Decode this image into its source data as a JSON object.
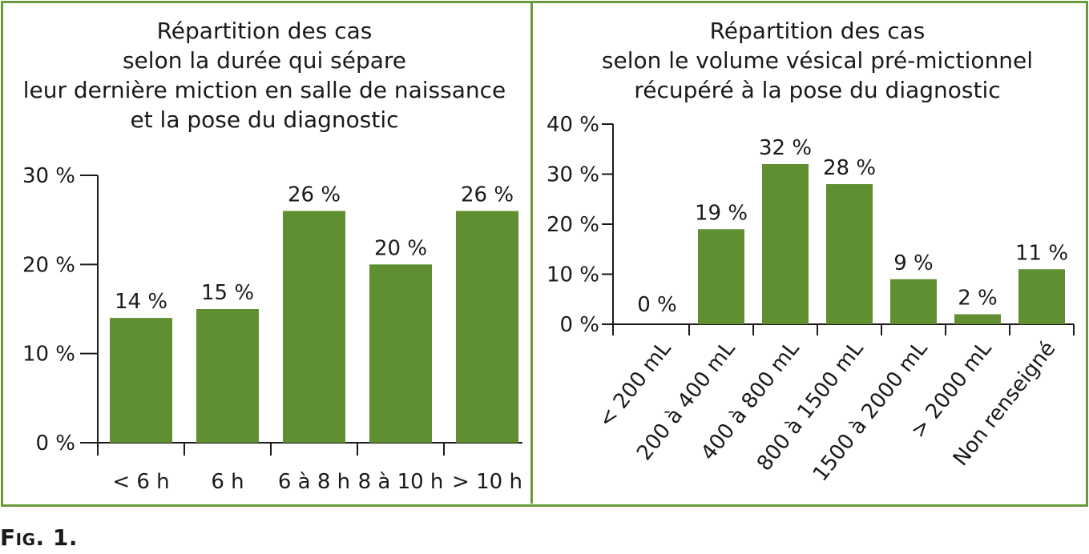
{
  "colors": {
    "bar": "#5f8f30",
    "frame": "#6a9a3c",
    "axis": "#1a1a1a"
  },
  "caption": "Fig. 1.",
  "chart_data": [
    {
      "type": "bar",
      "title_lines": [
        "Répartition des cas",
        "selon la durée qui sépare",
        "leur dernière miction en salle de naissance",
        "et la pose du diagnostic"
      ],
      "categories": [
        "< 6 h",
        "6 h",
        "6 à 8 h",
        "8 à 10 h",
        "> 10 h"
      ],
      "values": [
        14,
        15,
        26,
        20,
        26
      ],
      "value_labels": [
        "14 %",
        "15 %",
        "26 %",
        "20 %",
        "26 %"
      ],
      "yticks": [
        "0 %",
        "10 %",
        "20 %",
        "30 %"
      ],
      "ylim": [
        0,
        30
      ],
      "grid": false
    },
    {
      "type": "bar",
      "title_lines": [
        "Répartition des cas",
        "selon le volume vésical pré-mictionnel",
        "récupéré à la pose du diagnostic"
      ],
      "categories": [
        "< 200 mL",
        "200 à 400 mL",
        "400 à 800 mL",
        "800 à 1500 mL",
        "1500 à 2000 mL",
        "> 2000 mL",
        "Non renseigné"
      ],
      "values": [
        0,
        19,
        32,
        28,
        9,
        2,
        11
      ],
      "value_labels": [
        "0 %",
        "19 %",
        "32 %",
        "28 %",
        "9 %",
        "2 %",
        "11 %"
      ],
      "yticks": [
        "0 %",
        "10 %",
        "20 %",
        "30 %",
        "40 %"
      ],
      "ylim": [
        0,
        40
      ],
      "grid": false
    }
  ]
}
